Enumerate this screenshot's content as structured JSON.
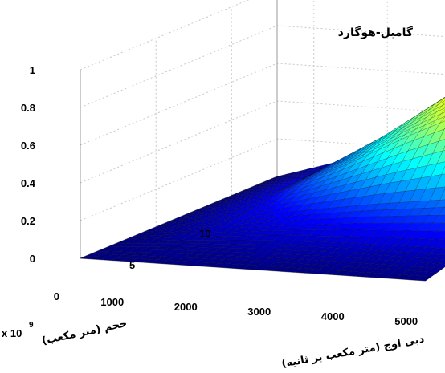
{
  "chart_data": {
    "type": "surface",
    "title": "گامبل-هوگارد",
    "xlabel": "دبی اوج (متر مکعب بر ثانیه)",
    "ylabel": "حجم (متر مکعب)",
    "y_multiplier": "x 10",
    "y_multiplier_exp": "9",
    "zlabel": "",
    "colormap": "jet",
    "grid": true,
    "xlim": [
      500,
      5200
    ],
    "ylim": [
      0,
      13
    ],
    "zlim": [
      0,
      1
    ],
    "x_ticks": [
      "1000",
      "2000",
      "3000",
      "4000",
      "5000"
    ],
    "x_tick_values": [
      1000,
      2000,
      3000,
      4000,
      5000
    ],
    "y_ticks": [
      "0",
      "5",
      "10"
    ],
    "y_tick_values": [
      0,
      5,
      10
    ],
    "z_ticks": [
      "0",
      "0.2",
      "0.4",
      "0.6",
      "0.8",
      "1"
    ],
    "z_tick_values": [
      0,
      0.2,
      0.4,
      0.6,
      0.8,
      1
    ],
    "x": [
      500,
      1500,
      2500,
      3500,
      4500,
      5200
    ],
    "y": [
      0,
      2.5,
      5,
      7.5,
      10,
      13
    ],
    "z": [
      [
        0.0,
        0.0,
        0.0,
        0.0,
        0.0,
        0.0
      ],
      [
        0.0,
        0.03,
        0.05,
        0.06,
        0.06,
        0.06
      ],
      [
        0.0,
        0.07,
        0.14,
        0.2,
        0.25,
        0.28
      ],
      [
        0.0,
        0.1,
        0.28,
        0.48,
        0.66,
        0.78
      ],
      [
        0.0,
        0.12,
        0.35,
        0.62,
        0.85,
        0.97
      ],
      [
        0.0,
        0.12,
        0.38,
        0.68,
        0.92,
        1.0
      ]
    ]
  }
}
